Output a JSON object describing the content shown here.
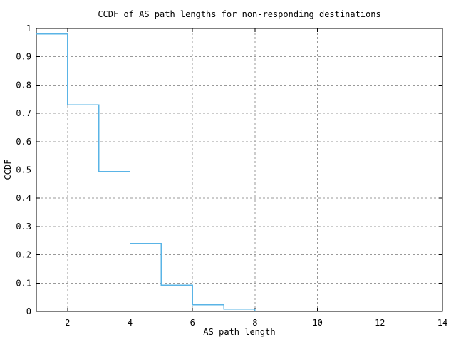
{
  "chart_data": {
    "type": "line",
    "step": "post",
    "title": "CCDF of AS path lengths for non-responding destinations",
    "xlabel": "AS path length",
    "ylabel": "CCDF",
    "xlim": [
      1,
      14
    ],
    "ylim": [
      0,
      1
    ],
    "grid": true,
    "legend": "none",
    "xticks": {
      "values": [
        2,
        4,
        6,
        8,
        10,
        12,
        14
      ],
      "labels": [
        "2",
        "4",
        "6",
        "8",
        "10",
        "12",
        "14"
      ]
    },
    "yticks": {
      "values": [
        0,
        0.1,
        0.2,
        0.3,
        0.4,
        0.5,
        0.6,
        0.7,
        0.8,
        0.9,
        1
      ],
      "labels": [
        "0",
        "0.1",
        "0.2",
        "0.3",
        "0.4",
        "0.5",
        "0.6",
        "0.7",
        "0.8",
        "0.9",
        "1"
      ]
    },
    "colors": {
      "grid": "#999999",
      "axis": "#000000",
      "background": "#ffffff"
    },
    "series": [
      {
        "name": "CCDF of AS path lengths",
        "color": "#5ab4e6",
        "points": [
          [
            1,
            0.98
          ],
          [
            2,
            0.73
          ],
          [
            3,
            0.495
          ],
          [
            4,
            0.24
          ],
          [
            5,
            0.093
          ],
          [
            6,
            0.023
          ],
          [
            7,
            0.008
          ],
          [
            8,
            0
          ]
        ]
      }
    ]
  }
}
